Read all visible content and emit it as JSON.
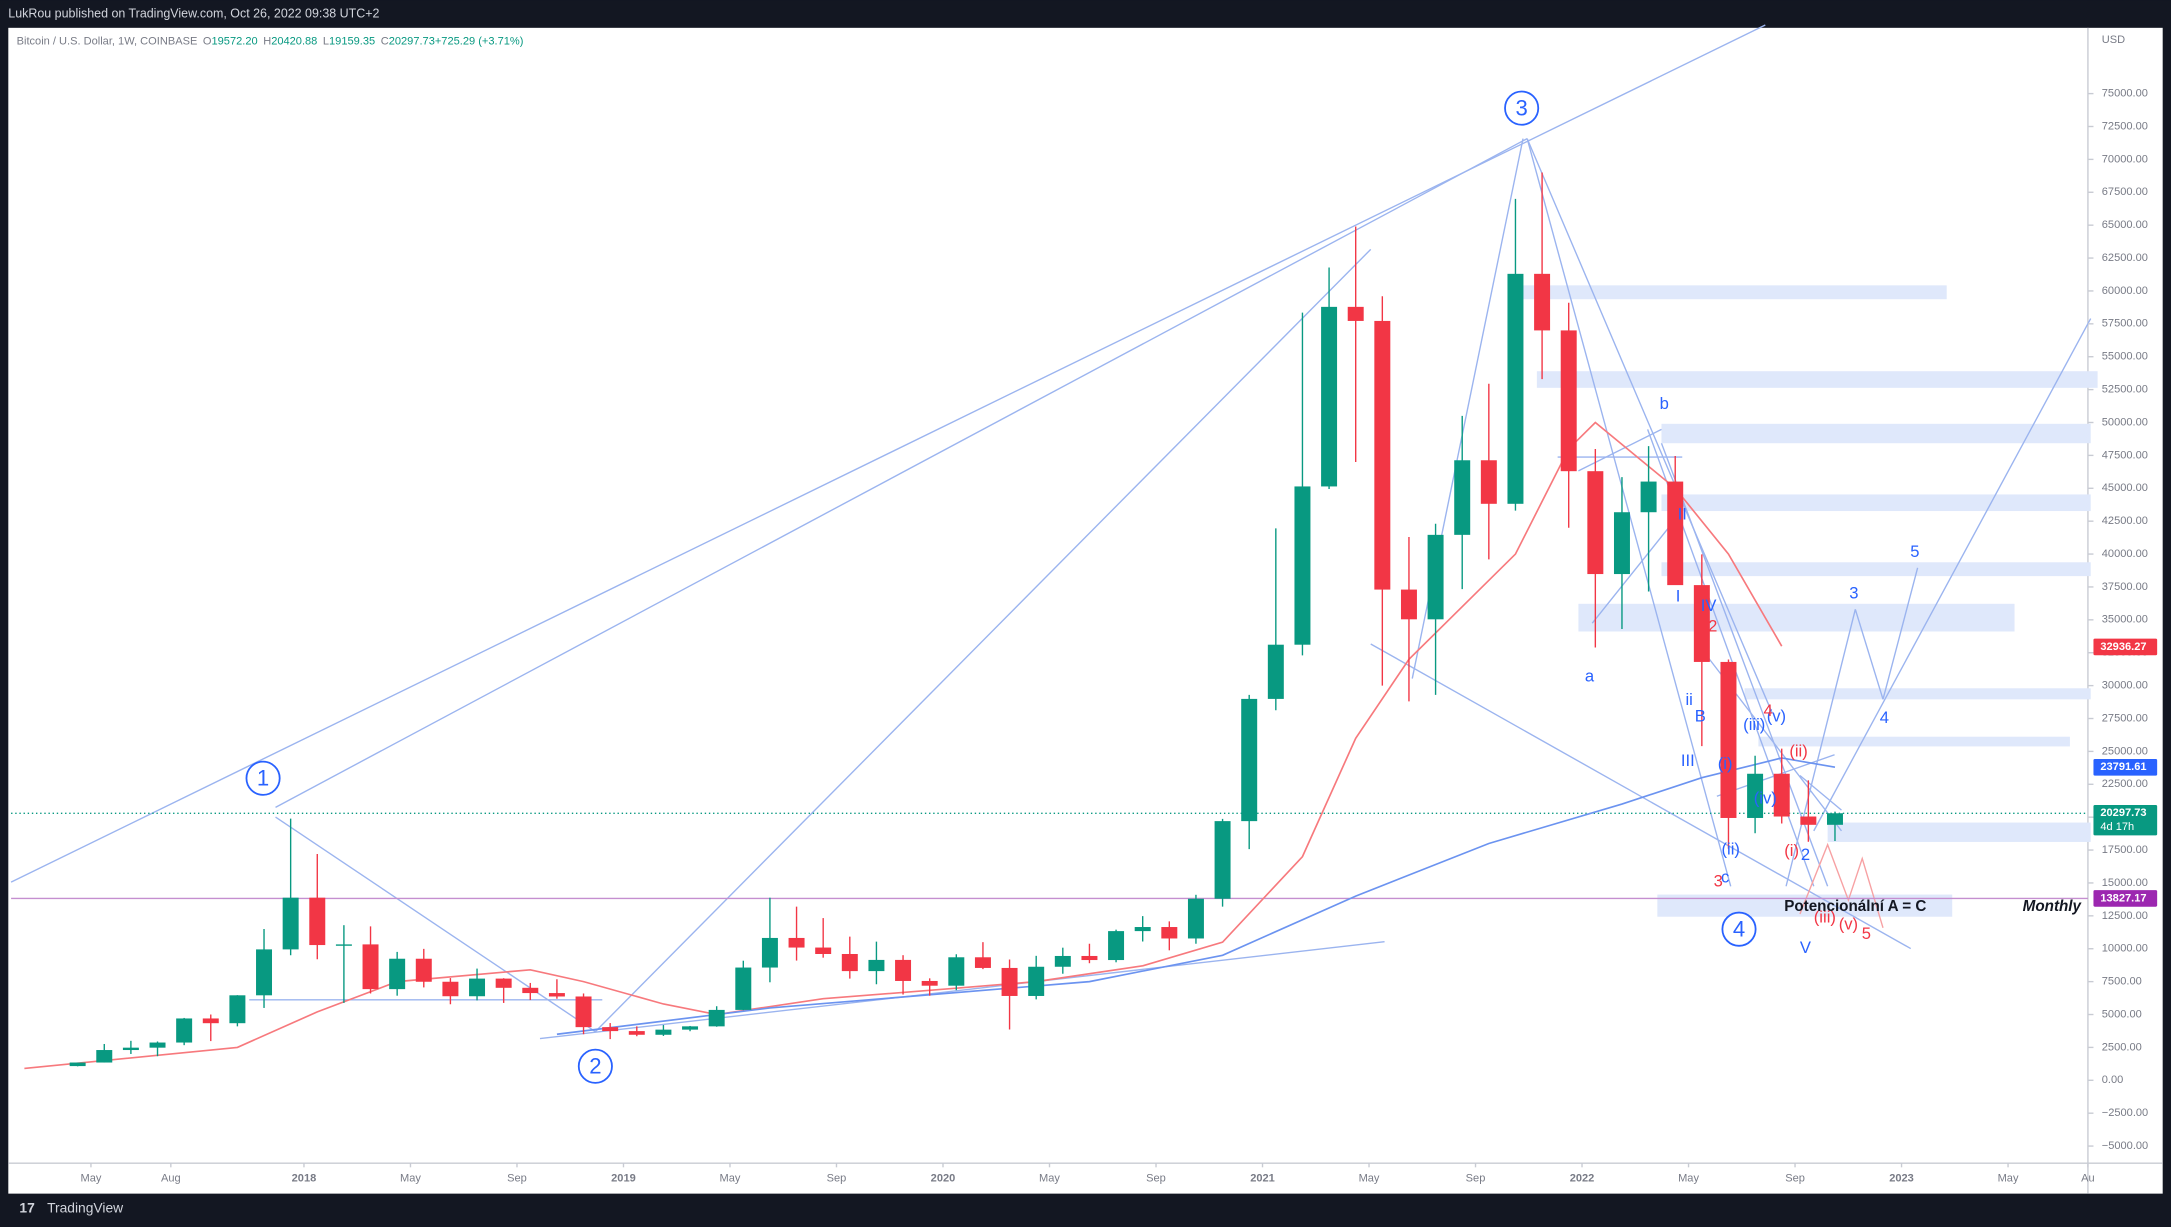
{
  "header": {
    "publisher": "LukRou published on TradingView.com, Oct 26, 2022 09:38 UTC+2"
  },
  "footer": {
    "brand": "TradingView"
  },
  "chart_data": {
    "type": "candlestick",
    "symbol": "Bitcoin / U.S. Dollar, 1W, COINBASE",
    "ohlc": [
      {
        "key": "O",
        "value": "19572.20"
      },
      {
        "key": "H",
        "value": "20420.88"
      },
      {
        "key": "L",
        "value": "19159.35"
      },
      {
        "key": "C",
        "value": "20297.73"
      },
      {
        "key": "",
        "value": "+725.29 (+3.71%)"
      }
    ],
    "currency": "USD",
    "up_color": "#089981",
    "down_color": "#f23645",
    "xlim": [
      "2017-02",
      "2023-08"
    ],
    "xticks": [
      {
        "value": "2017-05",
        "label": "May"
      },
      {
        "value": "2017-08",
        "label": "Aug"
      },
      {
        "value": "2018-01",
        "label": "2018"
      },
      {
        "value": "2018-05",
        "label": "May"
      },
      {
        "value": "2018-09",
        "label": "Sep"
      },
      {
        "value": "2019-01",
        "label": "2019"
      },
      {
        "value": "2019-05",
        "label": "May"
      },
      {
        "value": "2019-09",
        "label": "Sep"
      },
      {
        "value": "2020-01",
        "label": "2020"
      },
      {
        "value": "2020-05",
        "label": "May"
      },
      {
        "value": "2020-09",
        "label": "Sep"
      },
      {
        "value": "2021-01",
        "label": "2021"
      },
      {
        "value": "2021-05",
        "label": "May"
      },
      {
        "value": "2021-09",
        "label": "Sep"
      },
      {
        "value": "2022-01",
        "label": "2022"
      },
      {
        "value": "2022-05",
        "label": "May"
      },
      {
        "value": "2022-09",
        "label": "Sep"
      },
      {
        "value": "2023-01",
        "label": "2023"
      },
      {
        "value": "2023-05",
        "label": "May"
      },
      {
        "value": "2023-08",
        "label": "Au"
      }
    ],
    "ylim": [
      -6300,
      80000
    ],
    "yticks": [
      {
        "value": -5000,
        "label": "−5000.00"
      },
      {
        "value": -2500,
        "label": "−2500.00"
      },
      {
        "value": 0,
        "label": "0.00"
      },
      {
        "value": 2500,
        "label": "2500.00"
      },
      {
        "value": 5000,
        "label": "5000.00"
      },
      {
        "value": 7500,
        "label": "7500.00"
      },
      {
        "value": 10000,
        "label": "10000.00"
      },
      {
        "value": 12500,
        "label": "12500.00"
      },
      {
        "value": 15000,
        "label": "15000.00"
      },
      {
        "value": 17500,
        "label": "17500.00"
      },
      {
        "value": 20000,
        "label": "20000.00"
      },
      {
        "value": 22500,
        "label": "22500.00"
      },
      {
        "value": 25000,
        "label": "25000.00"
      },
      {
        "value": 27500,
        "label": "27500.00"
      },
      {
        "value": 30000,
        "label": "30000.00"
      },
      {
        "value": 32500,
        "label": "32500.00"
      },
      {
        "value": 35000,
        "label": "35000.00"
      },
      {
        "value": 37500,
        "label": "37500.00"
      },
      {
        "value": 40000,
        "label": "40000.00"
      },
      {
        "value": 42500,
        "label": "42500.00"
      },
      {
        "value": 45000,
        "label": "45000.00"
      },
      {
        "value": 47500,
        "label": "47500.00"
      },
      {
        "value": 50000,
        "label": "50000.00"
      },
      {
        "value": 52500,
        "label": "52500.00"
      },
      {
        "value": 55000,
        "label": "55000.00"
      },
      {
        "value": 57500,
        "label": "57500.00"
      },
      {
        "value": 60000,
        "label": "60000.00"
      },
      {
        "value": 62500,
        "label": "62500.00"
      },
      {
        "value": 65000,
        "label": "65000.00"
      },
      {
        "value": 67500,
        "label": "67500.00"
      },
      {
        "value": 70000,
        "label": "70000.00"
      },
      {
        "value": 72500,
        "label": "72500.00"
      },
      {
        "value": 75000,
        "label": "75000.00"
      }
    ],
    "candles": {
      "x": [
        "2017-04",
        "2017-05",
        "2017-06",
        "2017-07",
        "2017-08",
        "2017-09",
        "2017-10",
        "2017-11",
        "2017-12",
        "2018-01",
        "2018-02",
        "2018-03",
        "2018-04",
        "2018-05",
        "2018-06",
        "2018-07",
        "2018-08",
        "2018-09",
        "2018-10",
        "2018-11",
        "2018-12",
        "2019-01",
        "2019-02",
        "2019-03",
        "2019-04",
        "2019-05",
        "2019-06",
        "2019-07",
        "2019-08",
        "2019-09",
        "2019-10",
        "2019-11",
        "2019-12",
        "2020-01",
        "2020-02",
        "2020-03",
        "2020-04",
        "2020-05",
        "2020-06",
        "2020-07",
        "2020-08",
        "2020-09",
        "2020-10",
        "2020-11",
        "2020-12",
        "2021-01",
        "2021-02",
        "2021-03",
        "2021-04",
        "2021-05",
        "2021-06",
        "2021-07",
        "2021-08",
        "2021-09",
        "2021-10",
        "2021-11",
        "2021-12",
        "2022-01",
        "2022-02",
        "2022-03",
        "2022-04",
        "2022-05",
        "2022-06",
        "2022-07",
        "2022-08",
        "2022-09",
        "2022-10"
      ],
      "open": [
        1080,
        1350,
        2300,
        2480,
        2870,
        4700,
        4340,
        6460,
        9950,
        13880,
        10280,
        10330,
        6930,
        9240,
        7490,
        6390,
        7730,
        7030,
        6630,
        6370,
        4040,
        3740,
        3460,
        3850,
        4100,
        5350,
        8570,
        10820,
        10090,
        9600,
        8300,
        9150,
        7550,
        7190,
        9350,
        8540,
        6410,
        8630,
        9450,
        9140,
        11340,
        11650,
        10780,
        13800,
        19700,
        28990,
        33110,
        45140,
        58790,
        57720,
        37300,
        35040,
        41460,
        47130,
        43820,
        61300,
        57000,
        46300,
        38480,
        43180,
        45510,
        37640,
        31800,
        19940,
        23300,
        20050,
        19420
      ],
      "high": [
        1350,
        2760,
        3000,
        2950,
        4740,
        5000,
        6470,
        11500,
        19890,
        17200,
        11790,
        11700,
        9760,
        9990,
        7770,
        8490,
        7760,
        7400,
        7680,
        6600,
        4350,
        4100,
        4200,
        4130,
        5630,
        9090,
        13880,
        13200,
        12330,
        10920,
        10540,
        9510,
        7750,
        9580,
        10500,
        9180,
        9460,
        10080,
        10380,
        11450,
        12480,
        12080,
        14100,
        19870,
        29300,
        41950,
        58350,
        61780,
        64900,
        59600,
        41300,
        42300,
        50500,
        52950,
        67000,
        69000,
        59100,
        47990,
        45850,
        48200,
        47450,
        39980,
        31990,
        24670,
        25210,
        22800,
        20420.88
      ],
      "low": [
        1060,
        1350,
        2000,
        1830,
        2670,
        2980,
        4100,
        5500,
        9500,
        9200,
        5880,
        6600,
        6430,
        7060,
        5780,
        6070,
        5880,
        6100,
        6200,
        3500,
        3130,
        3350,
        3370,
        3730,
        4070,
        5330,
        7450,
        9100,
        9320,
        7730,
        7300,
        6520,
        6430,
        6850,
        8450,
        3860,
        6150,
        8100,
        8900,
        8970,
        10550,
        9880,
        10380,
        13200,
        17570,
        28130,
        32300,
        44950,
        47000,
        30000,
        28800,
        29300,
        37330,
        39600,
        43300,
        53300,
        42000,
        32900,
        34300,
        37150,
        37700,
        25400,
        17600,
        18780,
        19520,
        18130,
        18190
      ],
      "close": [
        1350,
        2300,
        2480,
        2870,
        4700,
        4340,
        6460,
        9950,
        13880,
        10280,
        10330,
        6930,
        9240,
        7490,
        6390,
        7730,
        7030,
        6630,
        6370,
        4040,
        3740,
        3460,
        3850,
        4100,
        5350,
        8570,
        10820,
        10090,
        9600,
        8300,
        9150,
        7550,
        7190,
        9350,
        8540,
        6410,
        8630,
        9450,
        9140,
        11340,
        11650,
        10780,
        13800,
        19700,
        28990,
        33110,
        45140,
        58790,
        57720,
        37300,
        35040,
        41460,
        47130,
        43820,
        61300,
        57000,
        46300,
        38480,
        43180,
        45510,
        37640,
        31800,
        19940,
        23300,
        20050,
        19420,
        20297.73
      ]
    },
    "lines": [
      {
        "color": "#f7797d",
        "x": [
          "2017-02",
          "2017-10",
          "2018-01",
          "2018-04",
          "2018-09",
          "2018-11",
          "2019-02",
          "2019-04",
          "2019-08",
          "2020-01",
          "2020-04",
          "2020-08",
          "2020-11",
          "2021-02",
          "2021-04",
          "2021-06",
          "2021-10",
          "2021-12",
          "2022-01",
          "2022-04",
          "2022-06",
          "2022-08"
        ],
        "values": [
          900,
          2500,
          5200,
          7500,
          8400,
          7500,
          5800,
          5000,
          6200,
          7000,
          7500,
          8700,
          10500,
          17000,
          26000,
          32000,
          40000,
          48000,
          50000,
          45000,
          40000,
          33000
        ]
      },
      {
        "color": "#6b93f0",
        "x": [
          "2018-10",
          "2019-06",
          "2020-06",
          "2020-11",
          "2021-04",
          "2021-09",
          "2022-02",
          "2022-05",
          "2022-08",
          "2022-10"
        ],
        "values": [
          3500,
          5500,
          7500,
          9500,
          14000,
          18000,
          21000,
          23000,
          24500,
          23800
        ]
      }
    ],
    "price_tags": [
      {
        "value": 32936.27,
        "color": "#f23645"
      },
      {
        "value": 23791.61,
        "color": "#2962ff"
      },
      {
        "value": 20297.73,
        "color": "#089981",
        "countdown": "4d 17h"
      },
      {
        "value": 13827.17,
        "color": "#9c27b0"
      }
    ],
    "wave_labels": [
      {
        "text": "1",
        "color": "#2962ff",
        "circle": true
      },
      {
        "text": "2",
        "color": "#2962ff",
        "circle": true
      },
      {
        "text": "3",
        "color": "#2962ff",
        "circle": true
      },
      {
        "text": "4",
        "color": "#2962ff",
        "circle": true
      },
      {
        "text": "a",
        "color": "#2962ff"
      },
      {
        "text": "b",
        "color": "#2962ff"
      },
      {
        "text": "c",
        "color": "#2962ff"
      },
      {
        "text": "I",
        "color": "#2962ff"
      },
      {
        "text": "II",
        "color": "#2962ff"
      },
      {
        "text": "III",
        "color": "#2962ff"
      },
      {
        "text": "IV",
        "color": "#2962ff"
      },
      {
        "text": "V",
        "color": "#2962ff"
      },
      {
        "text": "B",
        "color": "#2962ff"
      },
      {
        "text": "ii",
        "color": "#2962ff"
      },
      {
        "text": "(i)",
        "color": "#2962ff"
      },
      {
        "text": "(ii)",
        "color": "#2962ff"
      },
      {
        "text": "(iii)",
        "color": "#2962ff"
      },
      {
        "text": "(iv)",
        "color": "#2962ff"
      },
      {
        "text": "(v)",
        "color": "#2962ff"
      },
      {
        "text": "3",
        "color": "#2962ff"
      },
      {
        "text": "4",
        "color": "#2962ff"
      },
      {
        "text": "5",
        "color": "#2962ff"
      },
      {
        "text": "2",
        "color": "#f23645"
      },
      {
        "text": "3",
        "color": "#f23645"
      },
      {
        "text": "4",
        "color": "#f23645"
      },
      {
        "text": "5",
        "color": "#f23645"
      },
      {
        "text": "(i)",
        "color": "#f23645"
      },
      {
        "text": "(ii)",
        "color": "#f23645"
      },
      {
        "text": "(iii)",
        "color": "#f23645"
      },
      {
        "text": "(v)",
        "color": "#f23645"
      },
      {
        "text": "2",
        "color": "#2962ff"
      }
    ],
    "notes": [
      {
        "text": "Potencionální A = C"
      },
      {
        "text": "Monthly"
      }
    ]
  }
}
